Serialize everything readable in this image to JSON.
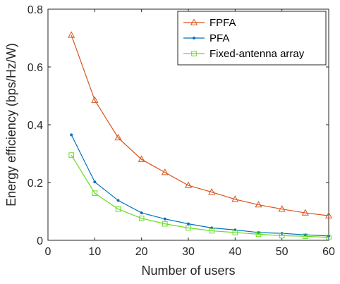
{
  "chart_data": {
    "type": "line",
    "xlabel": "Number of users",
    "ylabel": "Energy efficiency (bps/Hz/W)",
    "xlim": [
      0,
      60
    ],
    "ylim": [
      0,
      0.8
    ],
    "xticks": [
      0,
      10,
      20,
      30,
      40,
      50,
      60
    ],
    "yticks": [
      0,
      0.2,
      0.4,
      0.6,
      0.8
    ],
    "grid": false,
    "legend_position": "top-right",
    "x": [
      5,
      10,
      15,
      20,
      25,
      30,
      35,
      40,
      45,
      50,
      55,
      60
    ],
    "series": [
      {
        "name": "FPFA",
        "color": "#d95319",
        "marker": "triangle",
        "values": [
          0.71,
          0.485,
          0.355,
          0.28,
          0.235,
          0.19,
          0.167,
          0.142,
          0.123,
          0.108,
          0.095,
          0.085
        ]
      },
      {
        "name": "PFA",
        "color": "#0072bd",
        "marker": "dot",
        "values": [
          0.365,
          0.202,
          0.138,
          0.095,
          0.074,
          0.057,
          0.043,
          0.036,
          0.027,
          0.024,
          0.019,
          0.015
        ]
      },
      {
        "name": "Fixed-antenna array",
        "color": "#66dd22",
        "marker": "square",
        "values": [
          0.295,
          0.163,
          0.108,
          0.076,
          0.057,
          0.043,
          0.033,
          0.027,
          0.021,
          0.016,
          0.014,
          0.01
        ]
      }
    ]
  }
}
